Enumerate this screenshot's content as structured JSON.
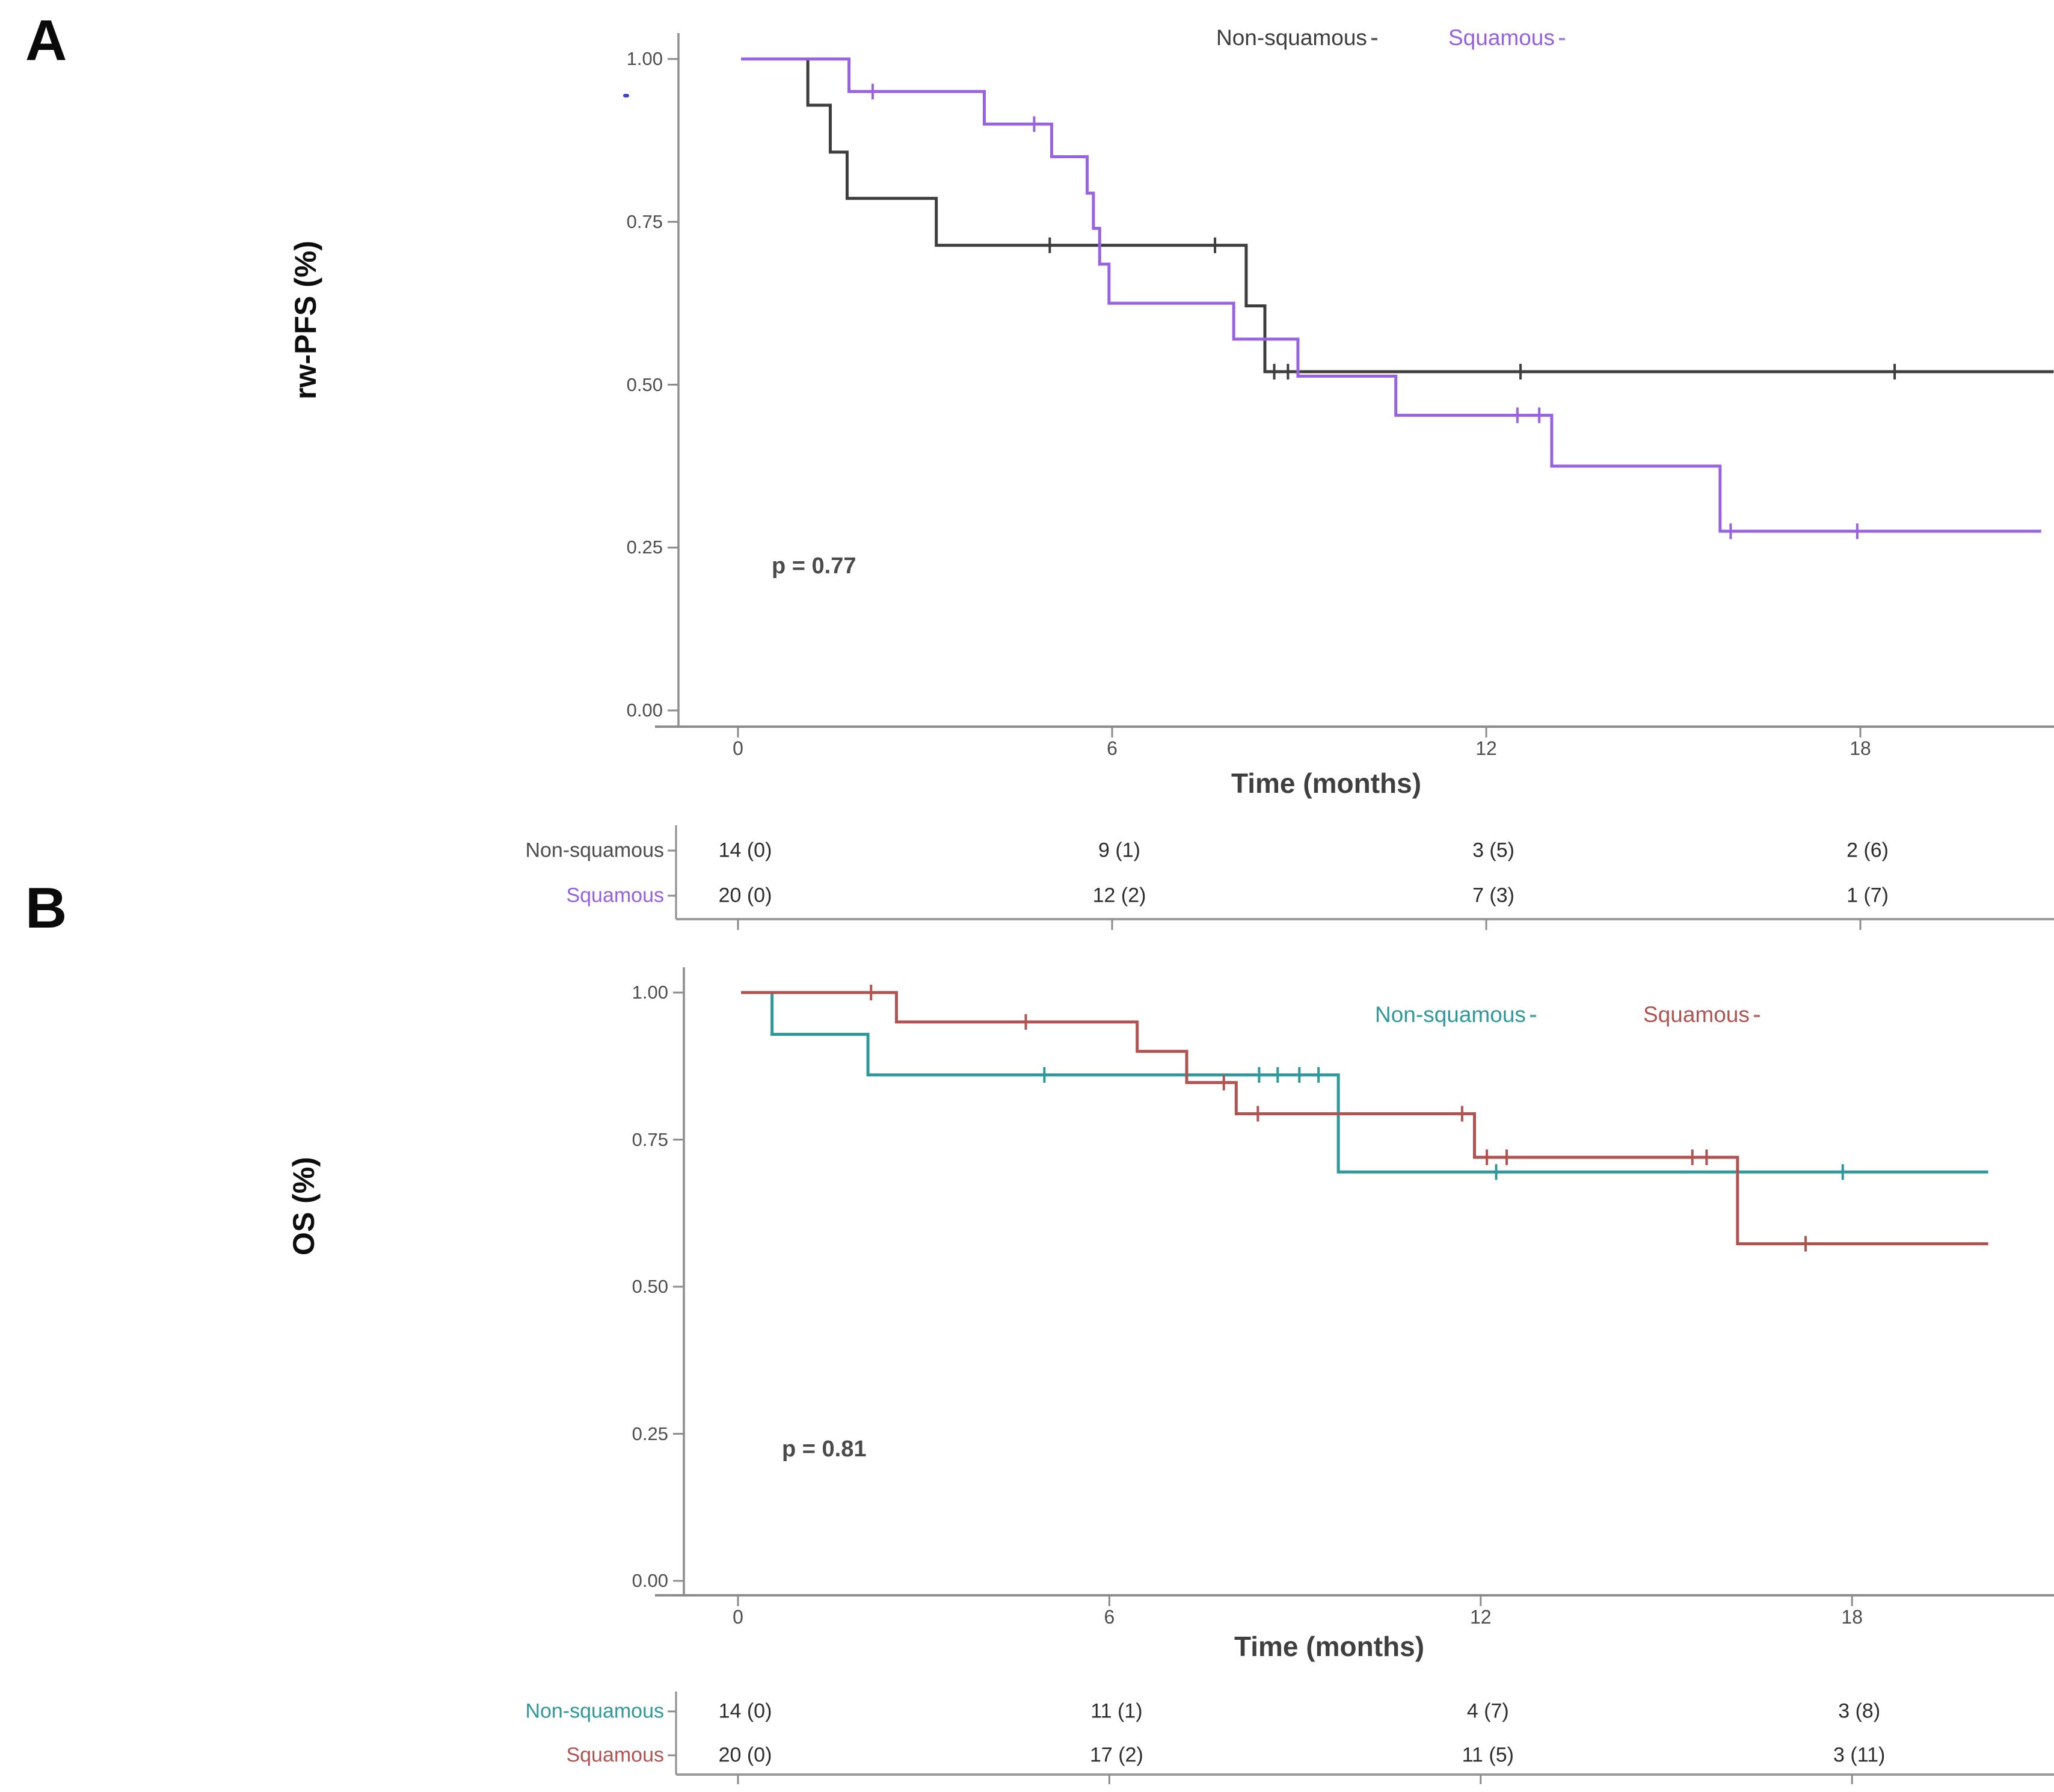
{
  "chart_data": [
    {
      "type": "line",
      "subtype": "kaplan-meier-step",
      "panel_label": "A",
      "ylabel": "rw-PFS (%)",
      "xlabel": "Time (months)",
      "p_value": "p = 0.77",
      "xlim": [
        -1.3,
        21.2
      ],
      "ylim": [
        0,
        1
      ],
      "grid": false,
      "legend_position": "top-right-inside",
      "x_ticks": [
        {
          "v": 0,
          "label": "0"
        },
        {
          "v": 6,
          "label": "6"
        },
        {
          "v": 12,
          "label": "12"
        },
        {
          "v": 18,
          "label": "18"
        }
      ],
      "y_ticks": [
        {
          "v": 1.0,
          "label": "1.00"
        },
        {
          "v": 0.75,
          "label": "0.75"
        },
        {
          "v": 0.5,
          "label": "0.50"
        },
        {
          "v": 0.25,
          "label": "0.25"
        },
        {
          "v": 0.0,
          "label": "0.00"
        }
      ],
      "legend": [
        {
          "name": "Non-squamous",
          "color": "#3d3d3d"
        },
        {
          "name": "Squamous",
          "color": "#9863e2"
        }
      ],
      "series": [
        {
          "name": "Non-squamous",
          "color": "#3d3d3d",
          "start_t": 0.05,
          "end_t": 21.1,
          "drops": [
            [
              1.12,
              0.929
            ],
            [
              1.48,
              0.857
            ],
            [
              1.75,
              0.786
            ],
            [
              3.18,
              0.714
            ],
            [
              8.15,
              0.621
            ],
            [
              8.45,
              0.52
            ]
          ],
          "censors": [
            [
              5.0,
              0.714
            ],
            [
              7.65,
              0.714
            ],
            [
              8.6,
              0.52
            ],
            [
              8.82,
              0.52
            ],
            [
              12.55,
              0.52
            ],
            [
              18.55,
              0.52
            ]
          ]
        },
        {
          "name": "Squamous",
          "color": "#9863e2",
          "start_t": 0.05,
          "end_t": 20.9,
          "drops": [
            [
              1.78,
              0.95
            ],
            [
              3.95,
              0.9
            ],
            [
              5.03,
              0.85
            ],
            [
              5.6,
              0.794
            ],
            [
              5.7,
              0.74
            ],
            [
              5.8,
              0.685
            ],
            [
              5.95,
              0.625
            ],
            [
              7.95,
              0.57
            ],
            [
              8.98,
              0.513
            ],
            [
              10.55,
              0.453
            ],
            [
              13.05,
              0.375
            ],
            [
              15.75,
              0.275
            ]
          ],
          "censors": [
            [
              2.16,
              0.95
            ],
            [
              4.75,
              0.9
            ],
            [
              12.5,
              0.453
            ],
            [
              12.85,
              0.453
            ],
            [
              15.92,
              0.275
            ],
            [
              17.95,
              0.275
            ]
          ]
        }
      ],
      "risk_table": {
        "rows": [
          {
            "label": "Non-squamous",
            "color": "#4d4d4d",
            "values": [
              "14 (0)",
              "9 (1)",
              "3 (5)",
              "2 (6)"
            ]
          },
          {
            "label": "Squamous",
            "color": "#9561e2",
            "values": [
              "20 (0)",
              "12 (2)",
              "7 (3)",
              "1 (7)"
            ]
          }
        ]
      }
    },
    {
      "type": "line",
      "subtype": "kaplan-meier-step",
      "panel_label": "B",
      "ylabel": "OS (%)",
      "xlabel": "Time (months)",
      "p_value": "p = 0.81",
      "xlim": [
        -1.3,
        21.2
      ],
      "ylim": [
        0,
        1
      ],
      "grid": false,
      "legend_position": "top-right-inside",
      "x_ticks": [
        {
          "v": 0,
          "label": "0"
        },
        {
          "v": 6,
          "label": "6"
        },
        {
          "v": 12,
          "label": "12"
        },
        {
          "v": 18,
          "label": "18"
        }
      ],
      "y_ticks": [
        {
          "v": 1.0,
          "label": "1.00"
        },
        {
          "v": 0.75,
          "label": "0.75"
        },
        {
          "v": 0.5,
          "label": "0.50"
        },
        {
          "v": 0.25,
          "label": "0.25"
        },
        {
          "v": 0.0,
          "label": "0.00"
        }
      ],
      "legend": [
        {
          "name": "Non-squamous",
          "color": "#2e989b"
        },
        {
          "name": "Squamous",
          "color": "#b05351"
        }
      ],
      "series": [
        {
          "name": "Non-squamous",
          "color": "#2e989b",
          "start_t": 0.05,
          "end_t": 20.2,
          "drops": [
            [
              0.55,
              0.929
            ],
            [
              2.1,
              0.86
            ],
            [
              9.7,
              0.695
            ]
          ],
          "censors": [
            [
              4.95,
              0.86
            ],
            [
              8.42,
              0.86
            ],
            [
              8.72,
              0.86
            ],
            [
              9.07,
              0.86
            ],
            [
              9.38,
              0.86
            ],
            [
              12.25,
              0.695
            ],
            [
              17.85,
              0.695
            ]
          ]
        },
        {
          "name": "Squamous",
          "color": "#b05351",
          "start_t": 0.05,
          "end_t": 20.2,
          "drops": [
            [
              2.56,
              0.95
            ],
            [
              6.45,
              0.9
            ],
            [
              7.25,
              0.847
            ],
            [
              8.05,
              0.794
            ],
            [
              11.9,
              0.72
            ],
            [
              16.15,
              0.573
            ]
          ],
          "censors": [
            [
              2.15,
              1.0
            ],
            [
              4.65,
              0.95
            ],
            [
              7.85,
              0.847
            ],
            [
              8.4,
              0.794
            ],
            [
              11.7,
              0.794
            ],
            [
              12.1,
              0.72
            ],
            [
              12.42,
              0.72
            ],
            [
              15.42,
              0.72
            ],
            [
              15.65,
              0.72
            ],
            [
              17.25,
              0.573
            ]
          ]
        }
      ],
      "risk_table": {
        "rows": [
          {
            "label": "Non-squamous",
            "color": "#2e989b",
            "values": [
              "14 (0)",
              "11 (1)",
              "4 (7)",
              "3 (8)"
            ]
          },
          {
            "label": "Squamous",
            "color": "#b05351",
            "values": [
              "20 (0)",
              "17 (2)",
              "11 (5)",
              "3 (11)"
            ]
          }
        ]
      }
    }
  ]
}
